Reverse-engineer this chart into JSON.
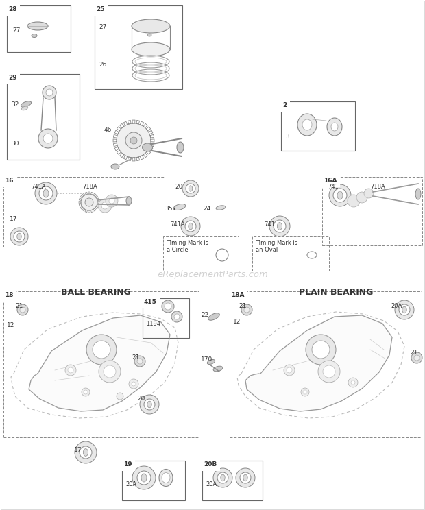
{
  "bg_color": "#ffffff",
  "line_color": "#aaaaaa",
  "dark_line": "#777777",
  "text_color": "#333333",
  "part_label_color": "#444444",
  "watermark": "eReplacementParts.com",
  "watermark_color": "#cccccc",
  "title_ball_bearing": "BALL BEARING",
  "title_plain_bearing": "PLAIN BEARING",
  "figsize": [
    6.2,
    7.44
  ],
  "dpi": 100
}
